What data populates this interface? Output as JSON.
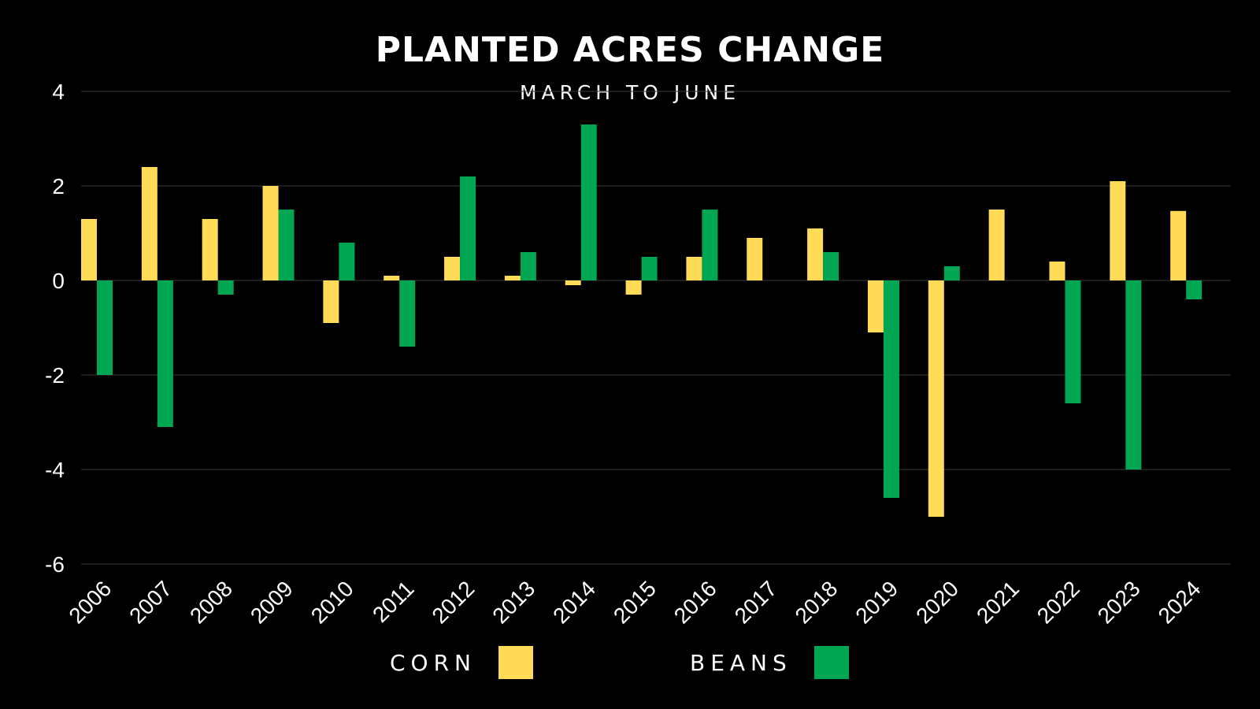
{
  "chart_data": {
    "type": "bar",
    "title": "PLANTED ACRES CHANGE",
    "subtitle": "MARCH TO JUNE",
    "xlabel": "",
    "ylabel": "",
    "categories": [
      "2006",
      "2007",
      "2008",
      "2009",
      "2010",
      "2011",
      "2012",
      "2013",
      "2014",
      "2015",
      "2016",
      "2017",
      "2018",
      "2019",
      "2020",
      "2021",
      "2022",
      "2023",
      "2024"
    ],
    "series": [
      {
        "name": "CORN",
        "color": "#FFDB58",
        "values": [
          1.3,
          2.4,
          1.3,
          2.0,
          -0.9,
          0.1,
          0.5,
          0.1,
          -0.1,
          -0.3,
          0.5,
          0.9,
          1.1,
          -1.1,
          -5.0,
          1.5,
          0.4,
          2.1,
          1.47
        ]
      },
      {
        "name": "BEANS",
        "color": "#00A651",
        "values": [
          -2.0,
          -3.1,
          -0.3,
          1.5,
          0.8,
          -1.4,
          2.2,
          0.6,
          3.3,
          0.5,
          1.5,
          0.0,
          0.6,
          -4.6,
          0.3,
          0.0,
          -2.6,
          -4.0,
          -0.4
        ]
      }
    ],
    "ylim": [
      -6,
      4
    ],
    "yticks": [
      4,
      2,
      0,
      -2,
      -4,
      -6
    ],
    "grid": true,
    "legend": "bottom-center",
    "background": "#000000"
  },
  "legend": {
    "corn_label": "CORN",
    "beans_label": "BEANS"
  }
}
